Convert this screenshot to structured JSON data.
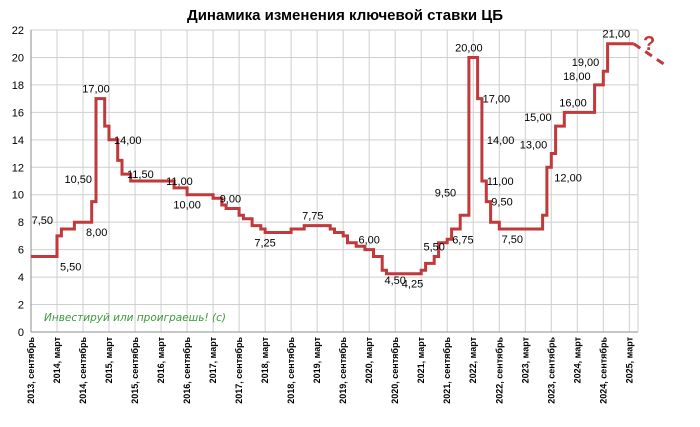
{
  "chart_data": {
    "type": "line",
    "title": "Динамика изменения ключевой ставки ЦБ",
    "xlabel": "",
    "ylabel": "",
    "ylim": [
      0,
      22
    ],
    "yticks": [
      "0",
      "2",
      "4",
      "6",
      "8",
      "10",
      "12",
      "14",
      "16",
      "18",
      "20",
      "22"
    ],
    "xlim": [
      "2013-09",
      "2025-05"
    ],
    "xticks": [
      {
        "date": "2013-09",
        "label": "2013, сентябрь"
      },
      {
        "date": "2014-03",
        "label": "2014, март"
      },
      {
        "date": "2014-09",
        "label": "2014, сентябрь"
      },
      {
        "date": "2015-03",
        "label": "2015, март"
      },
      {
        "date": "2015-09",
        "label": "2015, сентябрь"
      },
      {
        "date": "2016-03",
        "label": "2016, март"
      },
      {
        "date": "2016-09",
        "label": "2016, сентябрь"
      },
      {
        "date": "2017-03",
        "label": "2017, март"
      },
      {
        "date": "2017-09",
        "label": "2017, сентябрь"
      },
      {
        "date": "2018-03",
        "label": "2018, март"
      },
      {
        "date": "2018-09",
        "label": "2018, сентябрь"
      },
      {
        "date": "2019-03",
        "label": "2019, март"
      },
      {
        "date": "2019-09",
        "label": "2019, сентябрь"
      },
      {
        "date": "2020-03",
        "label": "2020, март"
      },
      {
        "date": "2020-09",
        "label": "2020, сентябрь"
      },
      {
        "date": "2021-03",
        "label": "2021, март"
      },
      {
        "date": "2021-09",
        "label": "2021, сентябрь"
      },
      {
        "date": "2022-03",
        "label": "2022, март"
      },
      {
        "date": "2022-09",
        "label": "2022, сентябрь"
      },
      {
        "date": "2023-03",
        "label": "2023, март"
      },
      {
        "date": "2023-09",
        "label": "2023, сентябрь"
      },
      {
        "date": "2024-03",
        "label": "2024, март"
      },
      {
        "date": "2024-09",
        "label": "2024, сентябрь"
      },
      {
        "date": "2025-03",
        "label": "2025, март"
      }
    ],
    "grid": true,
    "series": [
      {
        "color": "#c0393b",
        "step": true,
        "points": [
          {
            "x": "2013-09",
            "y": 5.5
          },
          {
            "x": "2014-03",
            "y": 7.0
          },
          {
            "x": "2014-04",
            "y": 7.5
          },
          {
            "x": "2014-07",
            "y": 8.0
          },
          {
            "x": "2014-11",
            "y": 9.5
          },
          {
            "x": "2014-12",
            "y": 10.5
          },
          {
            "x": "2014-12",
            "y": 17.0
          },
          {
            "x": "2015-02",
            "y": 15.0
          },
          {
            "x": "2015-03",
            "y": 14.0
          },
          {
            "x": "2015-05",
            "y": 12.5
          },
          {
            "x": "2015-06",
            "y": 11.5
          },
          {
            "x": "2015-08",
            "y": 11.0
          },
          {
            "x": "2016-06",
            "y": 10.5
          },
          {
            "x": "2016-09",
            "y": 10.0
          },
          {
            "x": "2017-03",
            "y": 9.75
          },
          {
            "x": "2017-05",
            "y": 9.25
          },
          {
            "x": "2017-06",
            "y": 9.0
          },
          {
            "x": "2017-09",
            "y": 8.5
          },
          {
            "x": "2017-10",
            "y": 8.25
          },
          {
            "x": "2017-12",
            "y": 7.75
          },
          {
            "x": "2018-02",
            "y": 7.5
          },
          {
            "x": "2018-03",
            "y": 7.25
          },
          {
            "x": "2018-09",
            "y": 7.5
          },
          {
            "x": "2018-12",
            "y": 7.75
          },
          {
            "x": "2019-06",
            "y": 7.5
          },
          {
            "x": "2019-07",
            "y": 7.25
          },
          {
            "x": "2019-09",
            "y": 7.0
          },
          {
            "x": "2019-10",
            "y": 6.5
          },
          {
            "x": "2019-12",
            "y": 6.25
          },
          {
            "x": "2020-02",
            "y": 6.0
          },
          {
            "x": "2020-04",
            "y": 5.5
          },
          {
            "x": "2020-06",
            "y": 4.5
          },
          {
            "x": "2020-07",
            "y": 4.25
          },
          {
            "x": "2021-03",
            "y": 4.5
          },
          {
            "x": "2021-04",
            "y": 5.0
          },
          {
            "x": "2021-06",
            "y": 5.5
          },
          {
            "x": "2021-07",
            "y": 6.5
          },
          {
            "x": "2021-09",
            "y": 6.75
          },
          {
            "x": "2021-10",
            "y": 7.5
          },
          {
            "x": "2021-12",
            "y": 8.5
          },
          {
            "x": "2022-02",
            "y": 9.5
          },
          {
            "x": "2022-02",
            "y": 20.0
          },
          {
            "x": "2022-04",
            "y": 17.0
          },
          {
            "x": "2022-05",
            "y": 14.0
          },
          {
            "x": "2022-05",
            "y": 11.0
          },
          {
            "x": "2022-06",
            "y": 9.5
          },
          {
            "x": "2022-07",
            "y": 8.0
          },
          {
            "x": "2022-09",
            "y": 7.5
          },
          {
            "x": "2023-07",
            "y": 8.5
          },
          {
            "x": "2023-08",
            "y": 12.0
          },
          {
            "x": "2023-09",
            "y": 13.0
          },
          {
            "x": "2023-10",
            "y": 15.0
          },
          {
            "x": "2023-12",
            "y": 16.0
          },
          {
            "x": "2024-07",
            "y": 18.0
          },
          {
            "x": "2024-09",
            "y": 19.0
          },
          {
            "x": "2024-10",
            "y": 21.0
          },
          {
            "x": "2025-04",
            "y": 21.0
          }
        ]
      }
    ],
    "forecast_segment": {
      "from": {
        "x": "2025-04",
        "y": 21.0
      },
      "to": {
        "x": "2025-12",
        "y": 19.3
      },
      "style": "dashed"
    },
    "data_labels": [
      {
        "text": "5,50",
        "x": "2014-03",
        "y": 5.5,
        "pos": "right-below"
      },
      {
        "text": "7,50",
        "x": "2014-03",
        "y": 7.5,
        "pos": "left"
      },
      {
        "text": "10,50",
        "x": "2014-12",
        "y": 10.5,
        "pos": "left"
      },
      {
        "text": "8,00",
        "x": "2014-09",
        "y": 8.0,
        "pos": "right-below"
      },
      {
        "text": "17,00",
        "x": "2014-12",
        "y": 17.0,
        "pos": "above"
      },
      {
        "text": "14,00",
        "x": "2015-03",
        "y": 14.0,
        "pos": "right"
      },
      {
        "text": "11,50",
        "x": "2015-06",
        "y": 11.5,
        "pos": "right"
      },
      {
        "text": "11,00",
        "x": "2016-03",
        "y": 11.0,
        "pos": "right"
      },
      {
        "text": "10,00",
        "x": "2016-09",
        "y": 10.0,
        "pos": "below"
      },
      {
        "text": "9,00",
        "x": "2017-07",
        "y": 9.0,
        "pos": "above"
      },
      {
        "text": "7,25",
        "x": "2018-03",
        "y": 7.25,
        "pos": "below"
      },
      {
        "text": "7,75",
        "x": "2019-02",
        "y": 7.75,
        "pos": "above"
      },
      {
        "text": "6,00",
        "x": "2020-03",
        "y": 6.0,
        "pos": "above"
      },
      {
        "text": "4,50",
        "x": "2020-09",
        "y": 4.5,
        "pos": "below"
      },
      {
        "text": "4,25",
        "x": "2021-01",
        "y": 4.25,
        "pos": "below"
      },
      {
        "text": "5,50",
        "x": "2021-06",
        "y": 5.5,
        "pos": "above"
      },
      {
        "text": "6,75",
        "x": "2021-09",
        "y": 6.75,
        "pos": "right"
      },
      {
        "text": "9,50",
        "x": "2021-12",
        "y": 9.5,
        "pos": "left"
      },
      {
        "text": "20,00",
        "x": "2022-02",
        "y": 20.0,
        "pos": "above"
      },
      {
        "text": "17,00",
        "x": "2022-04",
        "y": 17.0,
        "pos": "right"
      },
      {
        "text": "14,00",
        "x": "2022-05",
        "y": 14.0,
        "pos": "right"
      },
      {
        "text": "11,00",
        "x": "2022-05",
        "y": 11.0,
        "pos": "right"
      },
      {
        "text": "9,50",
        "x": "2022-06",
        "y": 9.5,
        "pos": "right"
      },
      {
        "text": "7,50",
        "x": "2022-12",
        "y": 7.5,
        "pos": "below"
      },
      {
        "text": "13,00",
        "x": "2023-09",
        "y": 13.0,
        "pos": "left"
      },
      {
        "text": "12,00",
        "x": "2023-09",
        "y": 12.0,
        "pos": "right-below"
      },
      {
        "text": "15,00",
        "x": "2023-10",
        "y": 15.0,
        "pos": "left"
      },
      {
        "text": "16,00",
        "x": "2024-02",
        "y": 16.0,
        "pos": "above"
      },
      {
        "text": "18,00",
        "x": "2024-07",
        "y": 18.0,
        "pos": "left"
      },
      {
        "text": "19,00",
        "x": "2024-09",
        "y": 19.0,
        "pos": "left"
      },
      {
        "text": "21,00",
        "x": "2024-12",
        "y": 21.0,
        "pos": "above"
      }
    ],
    "annotations": [
      {
        "text": "Инвестируй или проиграешь! (c)",
        "kind": "watermark",
        "color": "#3a9a3a"
      },
      {
        "text": "?",
        "kind": "forecast-mark",
        "color": "#c0393b"
      }
    ]
  }
}
